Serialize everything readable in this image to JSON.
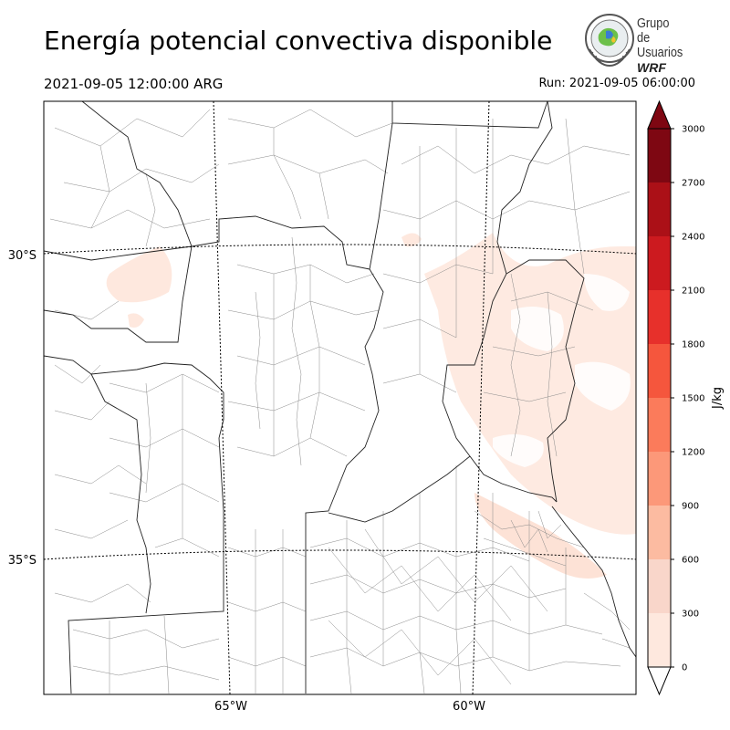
{
  "header": {
    "title": "Energía potencial convectiva disponible",
    "valid_time": "2021-09-05 12:00:00 ARG",
    "run_time": "Run: 2021-09-05 06:00:00"
  },
  "logo": {
    "line1": "Grupo de",
    "line2": "Usuarios",
    "line3": "WRF"
  },
  "map": {
    "lat_labels": [
      "30°S",
      "35°S"
    ],
    "lon_labels": [
      "65°W",
      "60°W"
    ]
  },
  "colorbar": {
    "label": "J/kg",
    "ticks": [
      "0",
      "300",
      "600",
      "900",
      "1200",
      "1500",
      "1800",
      "2100",
      "2400",
      "2700",
      "3000"
    ],
    "colors": [
      "#fee8de",
      "#f9d6ca",
      "#fcbba1",
      "#fc9879",
      "#fb7b5b",
      "#f5563d",
      "#e7302b",
      "#cc1a1f",
      "#ab1017",
      "#7e0712"
    ]
  }
}
